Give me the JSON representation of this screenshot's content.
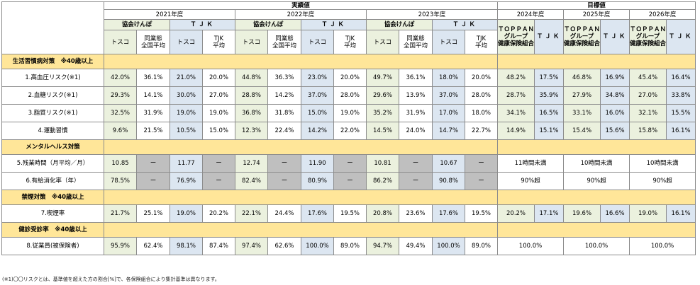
{
  "header": {
    "jisseki": "実績値",
    "mokuhyo": "目標値",
    "years_actual": [
      "2021年度",
      "2022年度",
      "2023年度"
    ],
    "years_target": [
      "2024年度",
      "2025年度",
      "2026年度"
    ],
    "kyokai": "協会けんぽ",
    "tjk": "ＴＪＫ",
    "tosco": "トスコ",
    "dogyo_line1": "同業態",
    "dogyo_line2": "全国平均",
    "tjk_avg_line1": "TJK",
    "tjk_avg_line2": "平均",
    "toppan_line1": "ＴＯＰＰＡＮ",
    "toppan_line2": "グループ",
    "toppan_line3": "健康保険組合",
    "tjk_target": "ＴＪＫ"
  },
  "sections": {
    "lifestyle": "生活習慣病対策　※40歳以上",
    "mental": "メンタルヘルス対策",
    "smoking": "禁煙対策　※40歳以上",
    "checkup": "健診受診率　※40歳以上"
  },
  "rows": {
    "r1": {
      "label": "1.高血圧リスク(※1)",
      "v": [
        "42.0%",
        "36.1%",
        "21.0%",
        "20.0%",
        "44.8%",
        "36.3%",
        "23.0%",
        "20.0%",
        "49.7%",
        "36.1%",
        "18.0%",
        "20.0%",
        "48.2%",
        "17.5%",
        "46.8%",
        "16.9%",
        "45.4%",
        "16.4%"
      ]
    },
    "r2": {
      "label": "2.血糖リスク(※1)",
      "v": [
        "29.3%",
        "14.1%",
        "30.0%",
        "27.0%",
        "28.8%",
        "14.2%",
        "37.0%",
        "28.0%",
        "29.6%",
        "13.9%",
        "37.0%",
        "28.0%",
        "28.7%",
        "35.9%",
        "27.9%",
        "34.8%",
        "27.0%",
        "33.8%"
      ]
    },
    "r3": {
      "label": "3.脂質リスク(※1)",
      "v": [
        "32.5%",
        "31.9%",
        "19.0%",
        "19.0%",
        "36.8%",
        "31.8%",
        "15.0%",
        "19.0%",
        "35.2%",
        "31.9%",
        "17.0%",
        "18.0%",
        "34.1%",
        "16.5%",
        "33.1%",
        "16.0%",
        "32.1%",
        "15.5%"
      ]
    },
    "r4": {
      "label": "4.運動習慣",
      "v": [
        "9.6%",
        "21.5%",
        "10.5%",
        "15.0%",
        "12.3%",
        "22.4%",
        "14.2%",
        "22.0%",
        "14.5%",
        "24.0%",
        "14.7%",
        "22.7%",
        "14.9%",
        "15.1%",
        "15.4%",
        "15.6%",
        "15.8%",
        "16.1%"
      ]
    },
    "r5": {
      "label": "5.残業時間（月平均／月）",
      "v": [
        "10.85",
        "ー",
        "11.77",
        "ー",
        "12.74",
        "ー",
        "11.90",
        "ー",
        "10.81",
        "ー",
        "10.67",
        "ー"
      ],
      "t": [
        "11時間未満",
        "10時間未満",
        "10時間未満"
      ]
    },
    "r6": {
      "label": "6.有給消化率（年）",
      "v": [
        "78.5%",
        "ー",
        "76.9%",
        "ー",
        "82.4%",
        "ー",
        "80.9%",
        "ー",
        "86.2%",
        "ー",
        "90.8%",
        "ー"
      ],
      "t": [
        "90%超",
        "90%超",
        "90%超"
      ]
    },
    "r7": {
      "label": "7.喫煙率",
      "v": [
        "21.7%",
        "25.1%",
        "19.0%",
        "20.2%",
        "22.1%",
        "24.4%",
        "17.6%",
        "19.5%",
        "20.8%",
        "23.6%",
        "17.6%",
        "19.5%",
        "20.2%",
        "17.1%",
        "19.6%",
        "16.6%",
        "19.0%",
        "16.1%"
      ]
    },
    "r8": {
      "label": "8.従業員(被保険者)",
      "v": [
        "95.9%",
        "62.4%",
        "98.1%",
        "87.4%",
        "97.4%",
        "62.6%",
        "100.0%",
        "89.0%",
        "94.7%",
        "49.4%",
        "100.0%",
        "89.0%"
      ],
      "t": [
        "100.0%",
        "100.0%",
        "100.0%"
      ]
    }
  },
  "footnote": "(※1)〇〇リスクとは、基準値を超えた方の割合[%]で、各保険組合により集計基準は異なります。",
  "colors": {
    "kyokai_bg": "#ebf1de",
    "tjk_bg": "#dce6f1",
    "section_bg": "#ffe699",
    "na_bg": "#bfbfbf"
  }
}
